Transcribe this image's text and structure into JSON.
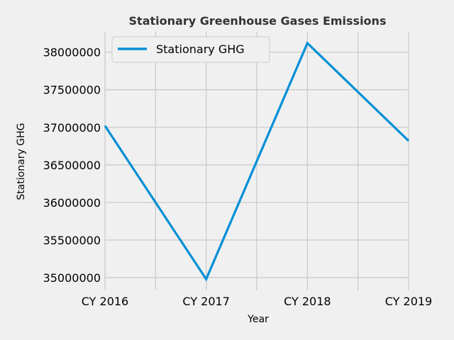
{
  "chart_data": {
    "type": "line",
    "title": "Stationary Greenhouse Gases Emissions",
    "xlabel": "Year",
    "ylabel": "Stationary GHG",
    "categories": [
      "CY 2016",
      "CY 2017",
      "CY 2018",
      "CY 2019"
    ],
    "series": [
      {
        "name": "Stationary GHG",
        "color": "#008fd5",
        "values": [
          37020000,
          34980000,
          38120000,
          36820000
        ]
      }
    ],
    "y_ticks": [
      "35000000",
      "35500000",
      "36000000",
      "36500000",
      "37000000",
      "37500000",
      "38000000"
    ],
    "ylim": [
      34830000,
      38270000
    ],
    "grid": true,
    "legend": "top-left",
    "background": "#f0f0f0",
    "grid_color": "#cbcbcb"
  }
}
